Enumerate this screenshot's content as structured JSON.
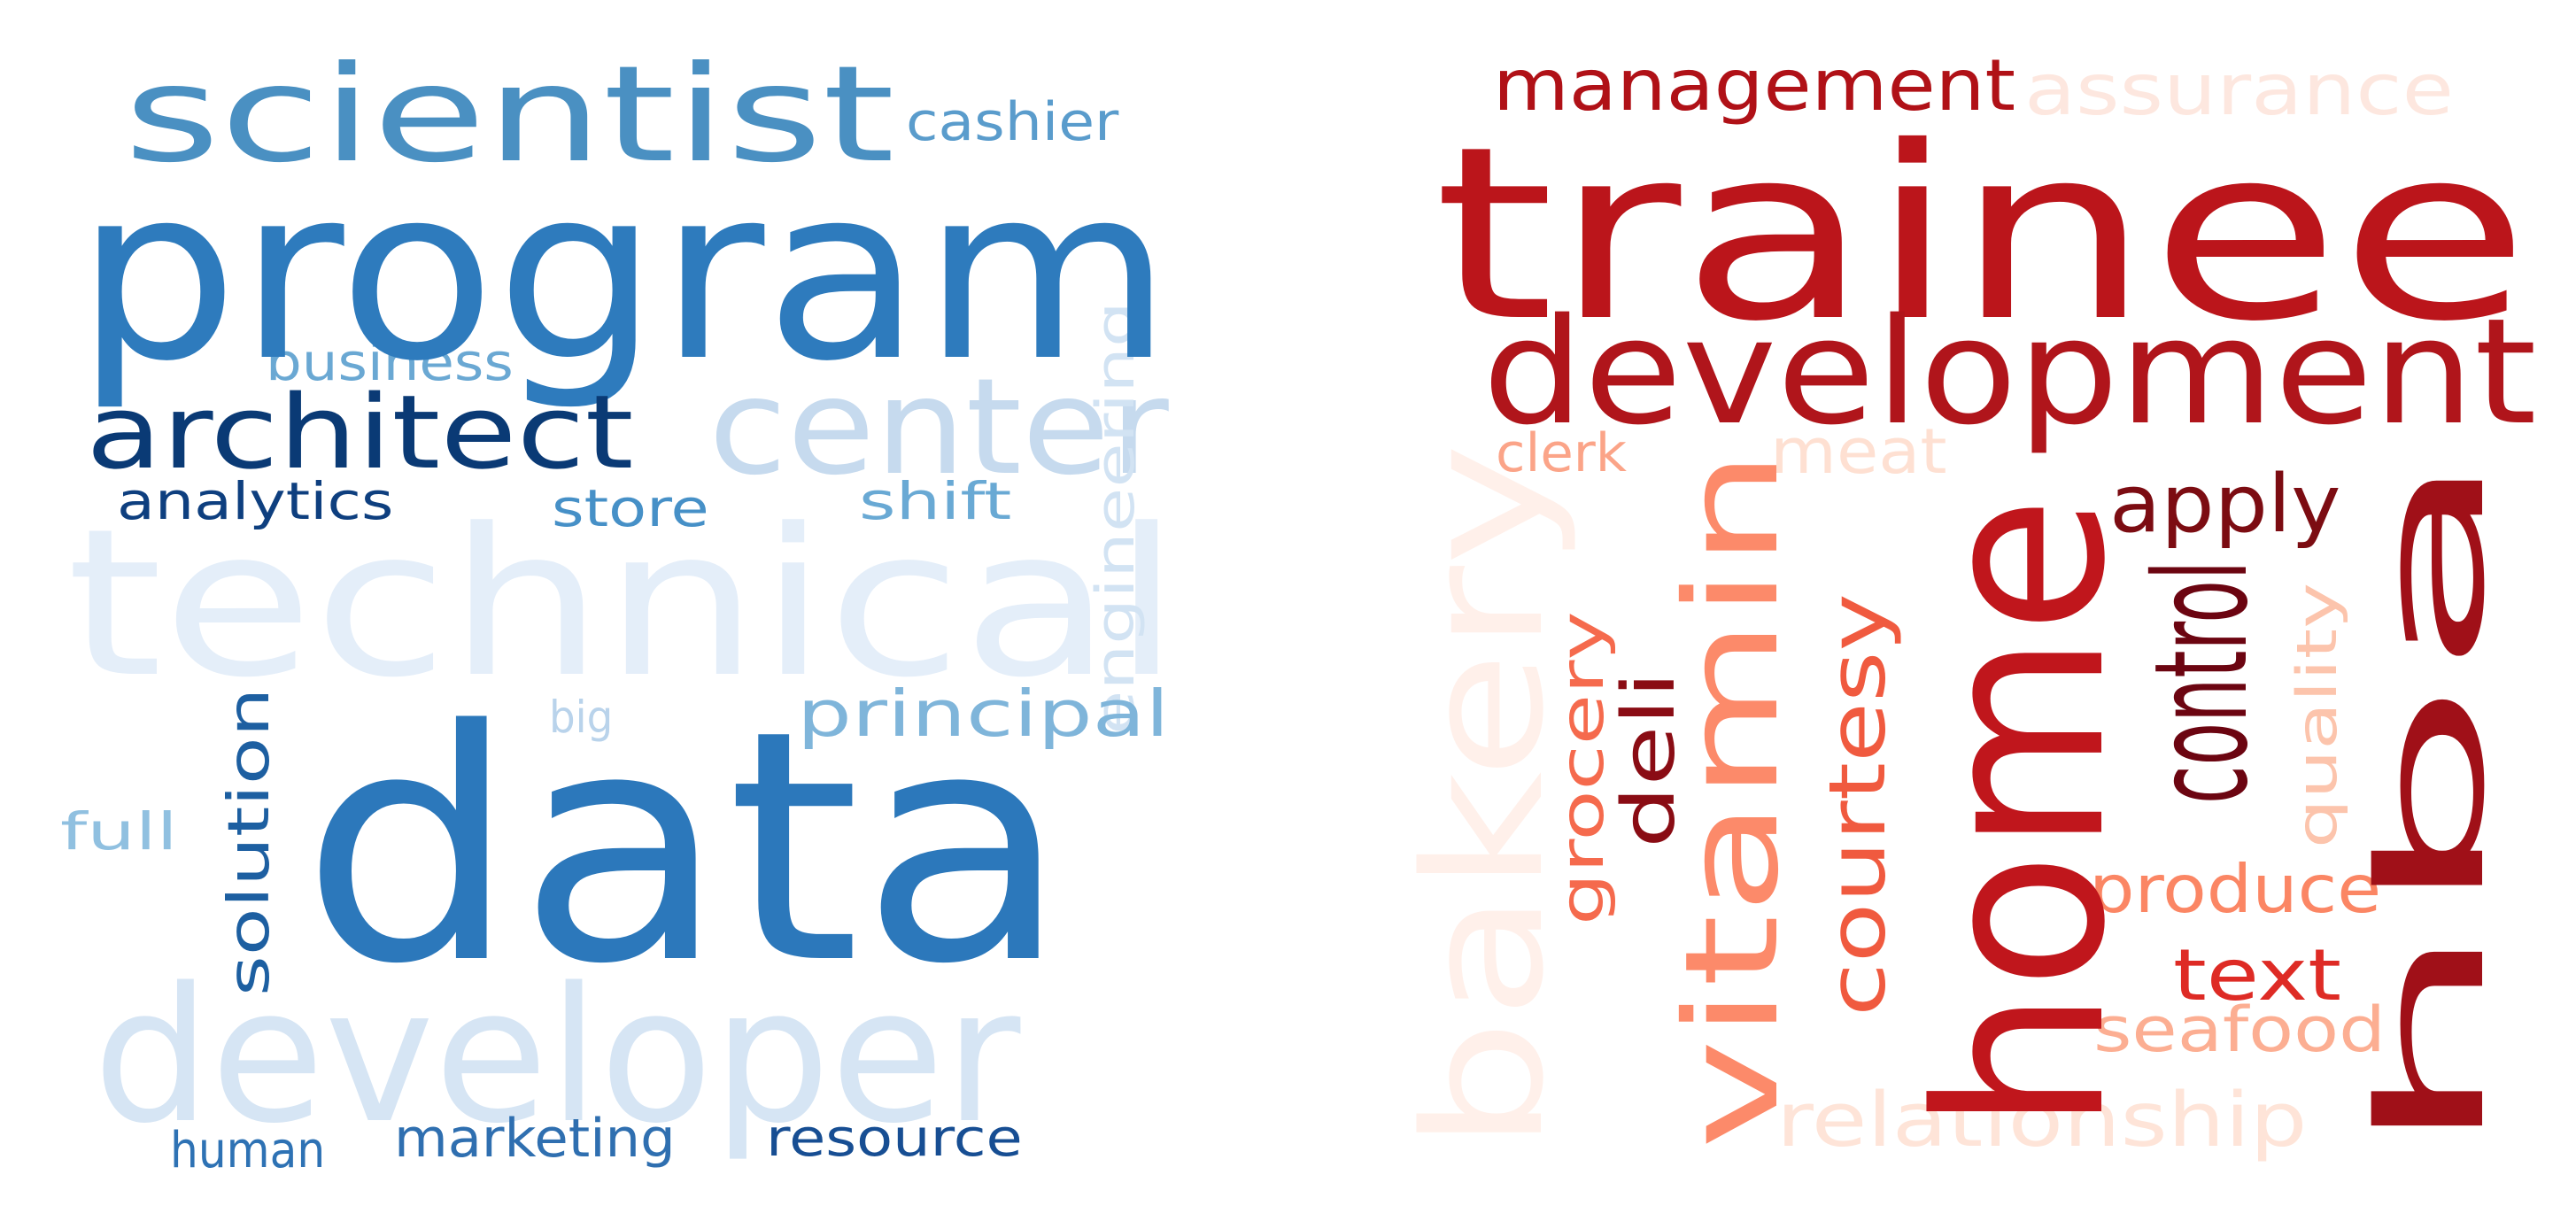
{
  "clouds": [
    {
      "id": "left",
      "words": [
        {
          "text": "scientist",
          "color": "#4a90c2"
        },
        {
          "text": "cashier",
          "color": "#5a9ccc"
        },
        {
          "text": "program",
          "color": "#2e7bbd"
        },
        {
          "text": "center",
          "color": "#c6daee"
        },
        {
          "text": "business",
          "color": "#6aa8d3"
        },
        {
          "text": "architect",
          "color": "#0a3a75"
        },
        {
          "text": "analytics",
          "color": "#0e3f7f"
        },
        {
          "text": "store",
          "color": "#4690c7"
        },
        {
          "text": "shift",
          "color": "#69a9d4"
        },
        {
          "text": "technical",
          "color": "#e4eef9"
        },
        {
          "text": "big",
          "color": "#b9d3eb"
        },
        {
          "text": "principal",
          "color": "#7fb5da"
        },
        {
          "text": "solution",
          "color": "#1d5fa1"
        },
        {
          "text": "data",
          "color": "#2c78bb"
        },
        {
          "text": "engineering",
          "color": "#d2e3f3"
        },
        {
          "text": "full",
          "color": "#90c0e0"
        },
        {
          "text": "developer",
          "color": "#d6e5f4"
        },
        {
          "text": "human",
          "color": "#2e72b4"
        },
        {
          "text": "marketing",
          "color": "#2f6fb0"
        },
        {
          "text": "resource",
          "color": "#174e93"
        }
      ]
    },
    {
      "id": "right",
      "words": [
        {
          "text": "management",
          "color": "#b01117"
        },
        {
          "text": "assurance",
          "color": "#fde7df"
        },
        {
          "text": "trainee",
          "color": "#bb151b"
        },
        {
          "text": "development",
          "color": "#b0151b"
        },
        {
          "text": "clerk",
          "color": "#fba488"
        },
        {
          "text": "meat",
          "color": "#fee0d2"
        },
        {
          "text": "apply",
          "color": "#7c0c12"
        },
        {
          "text": "bakery",
          "color": "#fff0ea"
        },
        {
          "text": "vitamin",
          "color": "#fc8a6a"
        },
        {
          "text": "grocery",
          "color": "#f56a4d"
        },
        {
          "text": "deli",
          "color": "#8a0c14"
        },
        {
          "text": "courtesy",
          "color": "#f05a3f"
        },
        {
          "text": "home",
          "color": "#c0161c"
        },
        {
          "text": "hba",
          "color": "#a01018"
        },
        {
          "text": "quality",
          "color": "#fcc4ac"
        },
        {
          "text": "control",
          "color": "#6c0511"
        },
        {
          "text": "produce",
          "color": "#fb8664"
        },
        {
          "text": "text",
          "color": "#de2b25"
        },
        {
          "text": "seafood",
          "color": "#fcae92"
        },
        {
          "text": "relationship",
          "color": "#fee4d8"
        }
      ]
    }
  ]
}
